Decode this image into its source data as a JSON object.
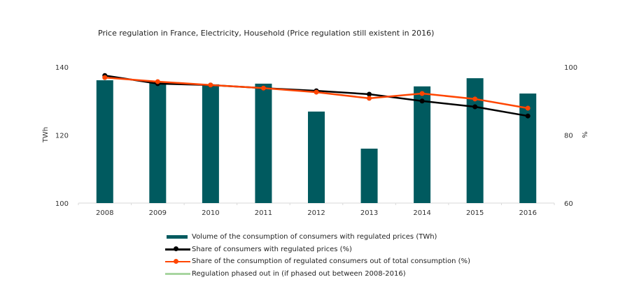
{
  "chart_data": {
    "type": "bar",
    "title": "Price regulation in France, Electricity, Household (Price regulation still existent in 2016)",
    "categories": [
      "2008",
      "2009",
      "2010",
      "2011",
      "2012",
      "2013",
      "2014",
      "2015",
      "2016"
    ],
    "left_axis": {
      "label": "TWh",
      "ylim": [
        100,
        140
      ],
      "ticks": [
        "100",
        "120",
        "140"
      ]
    },
    "right_axis": {
      "label": "%",
      "ylim": [
        60,
        100
      ],
      "ticks": [
        "60",
        "80",
        "100"
      ]
    },
    "series": [
      {
        "name": "Volume of the consumption of consumers with regulated prices (TWh)",
        "type": "bar",
        "axis": "left",
        "color": "#005a5f",
        "values": [
          136.1,
          135.5,
          134.9,
          135.1,
          126.9,
          116.0,
          134.3,
          136.7,
          132.2
        ]
      },
      {
        "name": "Share of consumers with regulated prices (%)",
        "type": "line",
        "axis": "right",
        "color": "#000000",
        "values": [
          97.5,
          95.1,
          94.7,
          93.8,
          93.0,
          92.0,
          90.0,
          88.3,
          85.6
        ]
      },
      {
        "name": "Share of the consumption of regulated consumers out of total consumption  (%)",
        "type": "line",
        "axis": "right",
        "color": "#ff4500",
        "values": [
          96.9,
          95.7,
          94.7,
          93.8,
          92.6,
          90.8,
          92.2,
          90.6,
          87.9
        ]
      },
      {
        "name": "Regulation phased out in (if phased out between 2008-2016)",
        "type": "line",
        "axis": "right",
        "color": "#a8d5a0",
        "values": []
      }
    ],
    "grid": false,
    "legend_position": "bottom"
  }
}
